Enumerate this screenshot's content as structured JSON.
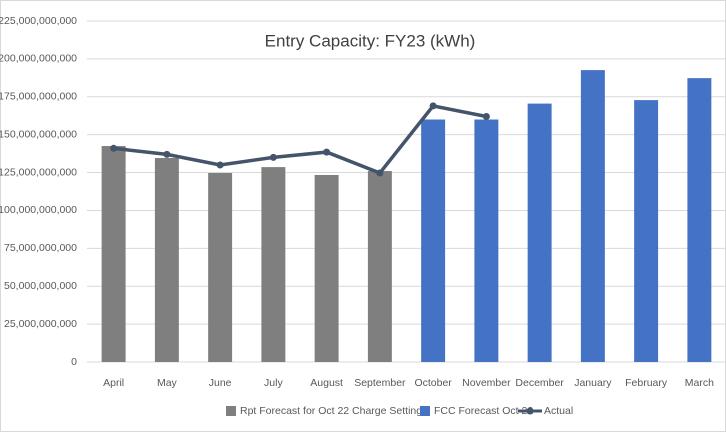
{
  "chart_data": {
    "type": "bar",
    "title": "Entry Capacity: FY23 (kWh)",
    "categories": [
      "April",
      "May",
      "June",
      "July",
      "August",
      "September",
      "October",
      "November",
      "December",
      "January",
      "February",
      "March"
    ],
    "series": [
      {
        "name": "Rpt Forecast for Oct 22 Charge Setting",
        "color": "#7f7f7f",
        "type": "bar",
        "values": [
          142500000000,
          134600000000,
          124700000000,
          128600000000,
          123400000000,
          126000000000,
          null,
          null,
          null,
          null,
          null,
          null
        ]
      },
      {
        "name": "FCC Forecast Oct 22",
        "color": "#4472c4",
        "type": "bar",
        "values": [
          null,
          null,
          null,
          null,
          null,
          null,
          160000000000,
          160000000000,
          170500000000,
          192600000000,
          172800000000,
          187300000000
        ]
      },
      {
        "name": "Actual",
        "color": "#44546a",
        "type": "line",
        "values": [
          141000000000,
          137000000000,
          130000000000,
          135000000000,
          138500000000,
          124700000000,
          169000000000,
          162000000000,
          null,
          null,
          null,
          null
        ]
      }
    ],
    "ylim": [
      0,
      225000000000
    ],
    "yticks": [
      0,
      {
        "value": 25000000000,
        "label": "25,000,000,000"
      },
      {
        "value": 50000000000,
        "label": "50,000,000,000"
      },
      {
        "value": 75000000000,
        "label": "75,000,000,000"
      },
      {
        "value": 100000000000,
        "label": "100,000,000,000"
      },
      {
        "value": 125000000000,
        "label": "125,000,000,000"
      },
      {
        "value": 150000000000,
        "label": "150,000,000,000"
      },
      {
        "value": 175000000000,
        "label": "175,000,000,000"
      },
      {
        "value": 200000000000,
        "label": "200,000,000,000"
      },
      {
        "value": 225000000000,
        "label": "225,000,000,000"
      }
    ],
    "grid": true,
    "legend": "bottom"
  }
}
